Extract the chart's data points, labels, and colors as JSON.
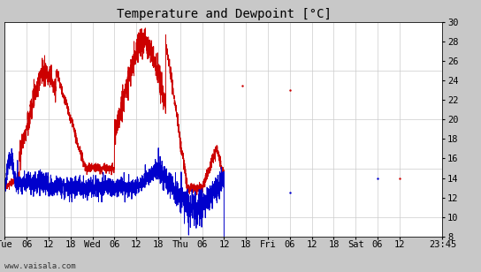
{
  "title": "Temperature and Dewpoint [°C]",
  "x_labels": [
    "Tue",
    "06",
    "12",
    "18",
    "Wed",
    "06",
    "12",
    "18",
    "Thu",
    "06",
    "12",
    "18",
    "Fri",
    "06",
    "12",
    "18",
    "Sat",
    "06",
    "12",
    "23:45"
  ],
  "x_tick_hours": [
    0,
    6,
    12,
    18,
    24,
    30,
    36,
    42,
    48,
    54,
    60,
    66,
    72,
    78,
    84,
    90,
    96,
    102,
    108,
    119.75
  ],
  "ylim": [
    8,
    30
  ],
  "yticks": [
    8,
    10,
    12,
    14,
    16,
    18,
    20,
    22,
    24,
    26,
    28,
    30
  ],
  "outer_bg": "#c8c8c8",
  "plot_bg_color": "#ffffff",
  "grid_color": "#cccccc",
  "temp_color": "#cc0000",
  "dewpoint_color": "#0000cc",
  "watermark": "www.vaisala.com",
  "title_fontsize": 10,
  "tick_fontsize": 7.5,
  "linewidth": 0.7,
  "total_hours": 119.75
}
